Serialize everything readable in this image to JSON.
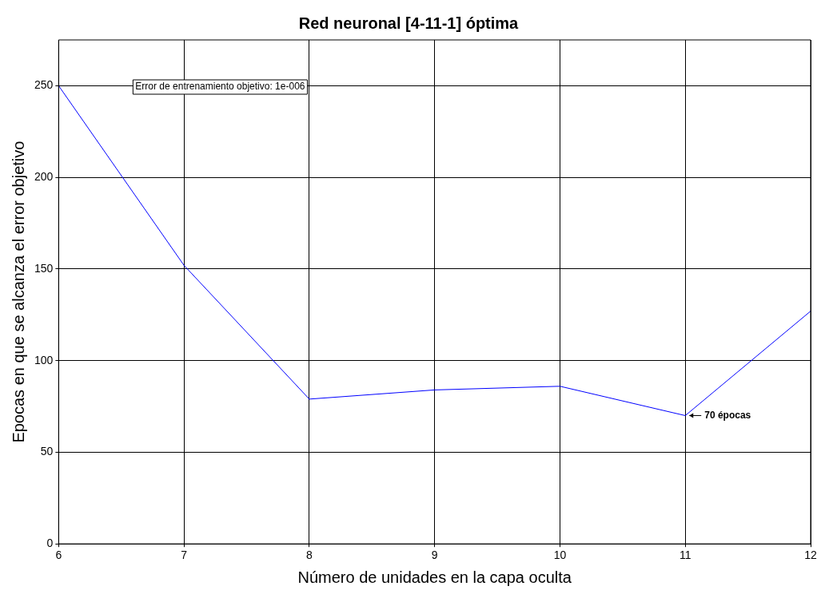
{
  "chart_data": {
    "type": "line",
    "title": "Red neuronal [4-11-1] óptima",
    "xlabel": "Número de unidades en la capa oculta",
    "ylabel": "Epocas en que se alcanza el error objetivo",
    "x": [
      6,
      7,
      8,
      9,
      10,
      11,
      12
    ],
    "series": [
      {
        "color": "#0000ff",
        "values": [
          250,
          152,
          79,
          84,
          86,
          70,
          127
        ]
      }
    ],
    "xlim": [
      6,
      12
    ],
    "xticks": [
      6,
      7,
      8,
      9,
      10,
      11,
      12
    ],
    "ylim": [
      0,
      275
    ],
    "yticks": [
      0,
      50,
      100,
      150,
      200,
      250
    ],
    "grid": true,
    "legend": false,
    "marker": "none",
    "line_style": "solid",
    "annotations": [
      "Error de entrenamiento objetivo: 1e-006",
      {
        "text": "70 épocas",
        "x": 11,
        "y": 70
      }
    ]
  }
}
